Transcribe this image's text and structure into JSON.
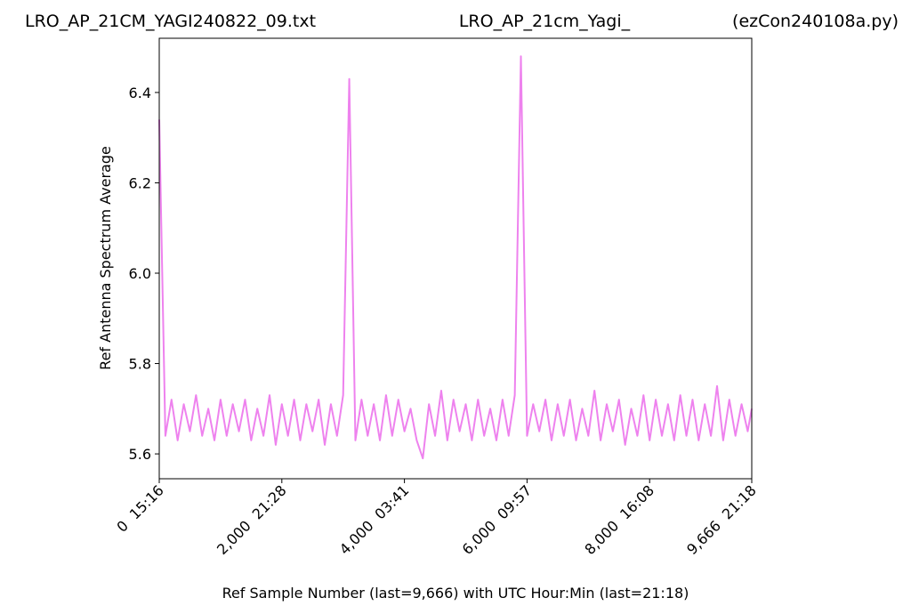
{
  "chart_data": {
    "type": "line",
    "title_left": "LRO_AP_21CM_YAGI240822_09.txt",
    "title_center": "LRO_AP_21cm_Yagi_",
    "title_right": "(ezCon240108a.py)",
    "x_label": "Ref Sample Number (last=9,666) with UTC Hour:Min (last=21:18)",
    "y_label": "Ref Antenna Spectrum Average",
    "x": [
      0,
      100,
      200,
      300,
      400,
      500,
      600,
      700,
      800,
      900,
      1000,
      1100,
      1200,
      1300,
      1400,
      1500,
      1600,
      1700,
      1800,
      1900,
      2000,
      2100,
      2200,
      2300,
      2400,
      2500,
      2600,
      2700,
      2800,
      2900,
      3000,
      3100,
      3200,
      3300,
      3400,
      3500,
      3600,
      3700,
      3800,
      3900,
      4000,
      4100,
      4200,
      4300,
      4400,
      4500,
      4600,
      4700,
      4800,
      4900,
      5000,
      5100,
      5200,
      5300,
      5400,
      5500,
      5600,
      5700,
      5800,
      5900,
      6000,
      6100,
      6200,
      6300,
      6400,
      6500,
      6600,
      6700,
      6800,
      6900,
      7000,
      7100,
      7200,
      7300,
      7400,
      7500,
      7600,
      7700,
      7800,
      7900,
      8000,
      8100,
      8200,
      8300,
      8400,
      8500,
      8600,
      8700,
      8800,
      8900,
      9000,
      9100,
      9200,
      9300,
      9400,
      9500,
      9600,
      9666
    ],
    "series": [
      {
        "name": "Ref Antenna Spectrum Average",
        "color": "#ee82ee",
        "values": [
          6.34,
          5.64,
          5.72,
          5.63,
          5.71,
          5.65,
          5.73,
          5.64,
          5.7,
          5.63,
          5.72,
          5.64,
          5.71,
          5.65,
          5.72,
          5.63,
          5.7,
          5.64,
          5.73,
          5.62,
          5.71,
          5.64,
          5.72,
          5.63,
          5.71,
          5.65,
          5.72,
          5.62,
          5.71,
          5.64,
          5.73,
          6.43,
          5.63,
          5.72,
          5.64,
          5.71,
          5.63,
          5.73,
          5.64,
          5.72,
          5.65,
          5.7,
          5.63,
          5.59,
          5.71,
          5.64,
          5.74,
          5.63,
          5.72,
          5.65,
          5.71,
          5.63,
          5.72,
          5.64,
          5.7,
          5.63,
          5.72,
          5.64,
          5.73,
          6.48,
          5.64,
          5.71,
          5.65,
          5.72,
          5.63,
          5.71,
          5.64,
          5.72,
          5.63,
          5.7,
          5.64,
          5.74,
          5.63,
          5.71,
          5.65,
          5.72,
          5.62,
          5.7,
          5.64,
          5.73,
          5.63,
          5.72,
          5.64,
          5.71,
          5.63,
          5.73,
          5.64,
          5.72,
          5.63,
          5.71,
          5.64,
          5.75,
          5.63,
          5.72,
          5.64,
          5.71,
          5.65,
          5.7
        ]
      }
    ],
    "xlim": [
      0,
      9666
    ],
    "xticks": [
      {
        "value": 0,
        "label": "0  15:16"
      },
      {
        "value": 2000,
        "label": "2,000  21:28"
      },
      {
        "value": 4000,
        "label": "4,000  03:41"
      },
      {
        "value": 6000,
        "label": "6,000  09:57"
      },
      {
        "value": 8000,
        "label": "8,000  16:08"
      },
      {
        "value": 9666,
        "label": "9,666  21:18"
      }
    ],
    "ylim": [
      5.545,
      6.52
    ],
    "yticks": [
      {
        "value": 5.6,
        "label": "5.6"
      },
      {
        "value": 5.8,
        "label": "5.8"
      },
      {
        "value": 6.0,
        "label": "6.0"
      },
      {
        "value": 6.2,
        "label": "6.2"
      },
      {
        "value": 6.4,
        "label": "6.4"
      }
    ],
    "grid": false
  }
}
